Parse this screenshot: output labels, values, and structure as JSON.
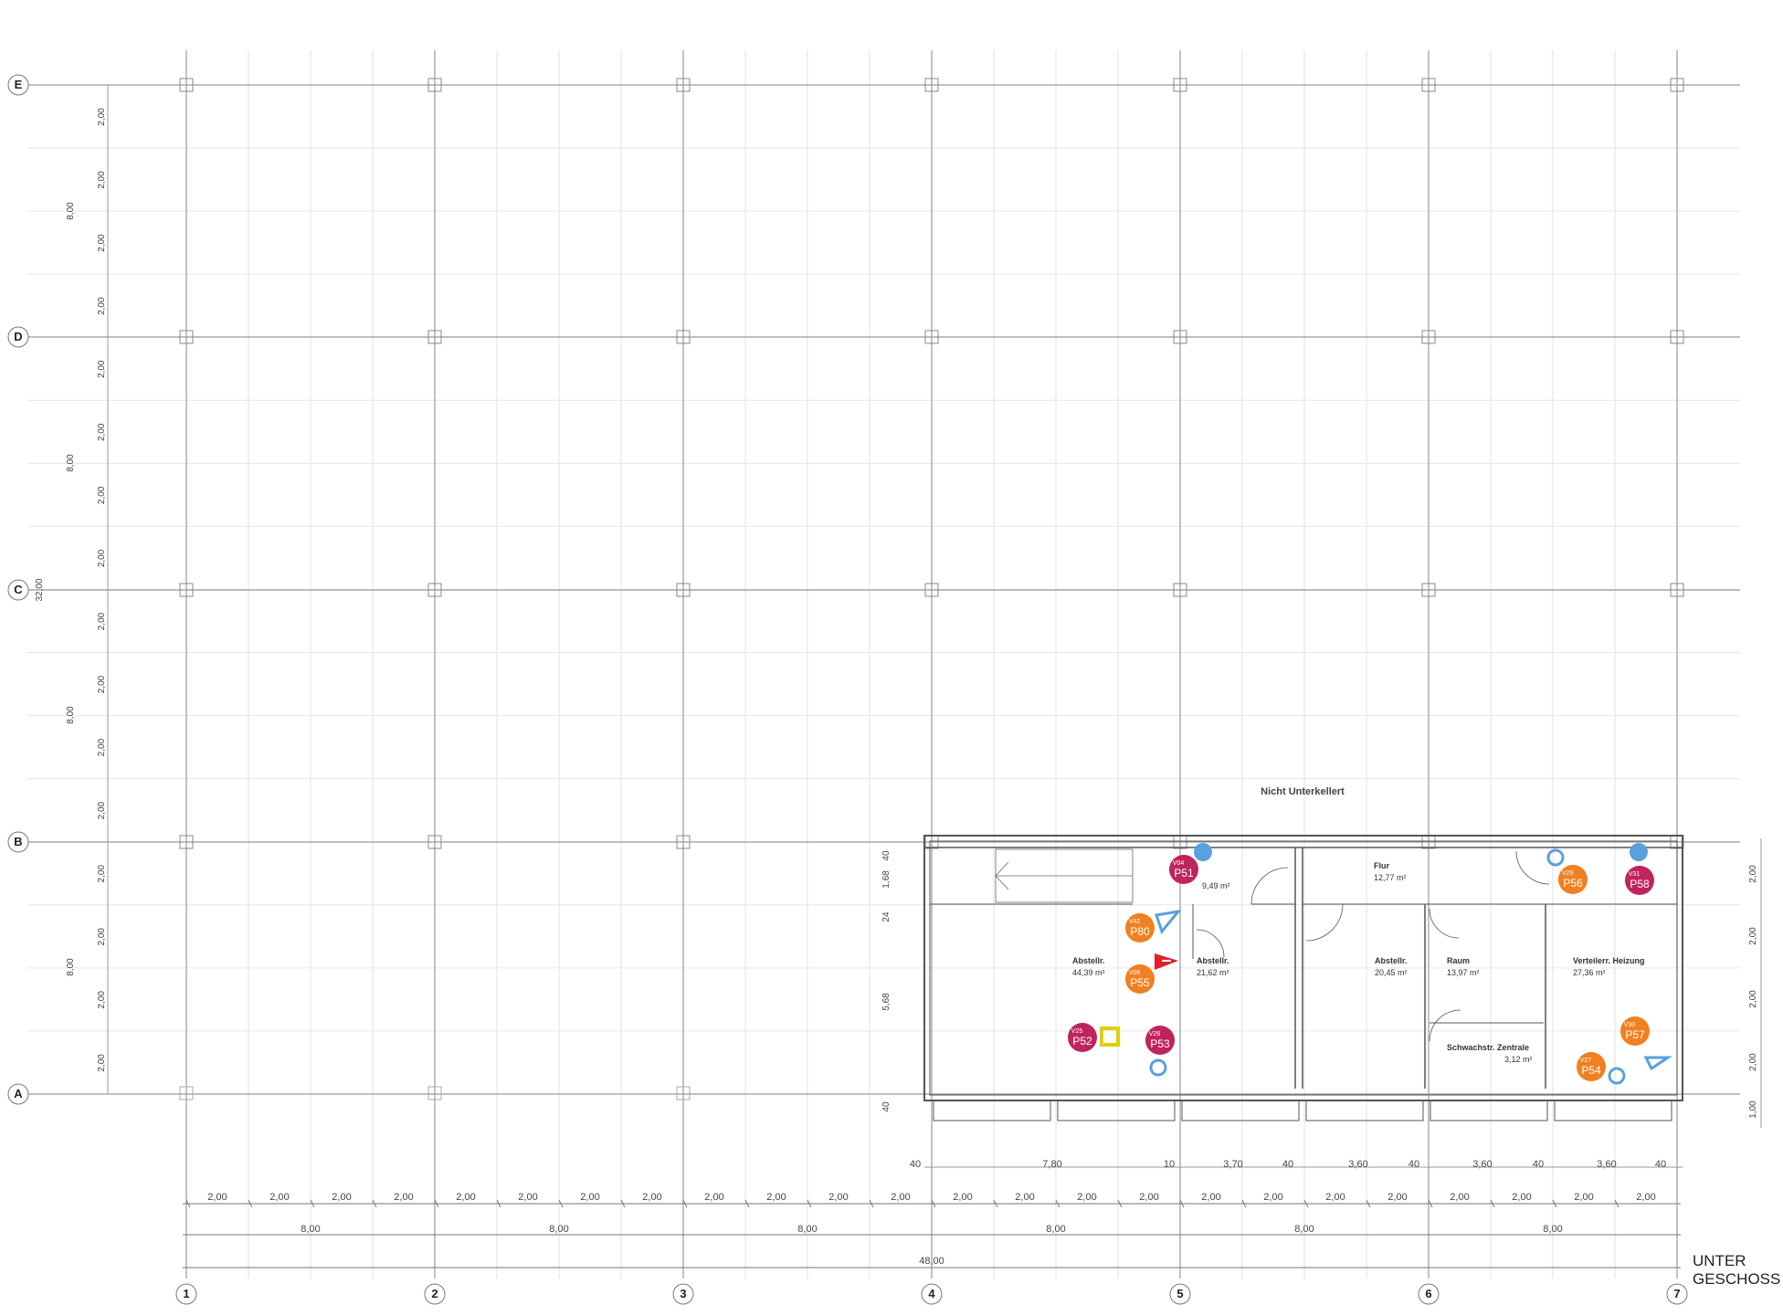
{
  "grid": {
    "columns": [
      "1",
      "2",
      "3",
      "4",
      "5",
      "6",
      "7"
    ],
    "rows": [
      "E",
      "D",
      "C",
      "B",
      "A"
    ]
  },
  "dims": {
    "sub": [
      "2,00",
      "2,00",
      "2,00",
      "2,00",
      "2,00",
      "2,00",
      "2,00",
      "2,00",
      "2,00",
      "2,00",
      "2,00",
      "2,00",
      "2,00",
      "2,00",
      "2,00",
      "2,00",
      "2,00",
      "2,00",
      "2,00",
      "2,00",
      "2,00",
      "2,00",
      "2,00",
      "2,00"
    ],
    "bays": [
      "8,00",
      "8,00",
      "8,00",
      "8,00",
      "8,00",
      "8,00"
    ],
    "total": "48,00",
    "left_sub": [
      "2,00",
      "2,00",
      "2,00",
      "2,00",
      "2,00",
      "2,00",
      "2,00",
      "2,00",
      "2,00",
      "2,00",
      "2,00",
      "2,00",
      "2,00",
      "2,00",
      "2,00",
      "2,00"
    ],
    "left_bays": [
      "8,00",
      "8,00",
      "8,00",
      "8,00"
    ],
    "left_total": "32,00",
    "walls": [
      "40",
      "7,80",
      "10",
      "3,70",
      "40",
      "3,60",
      "40",
      "3,60",
      "40",
      "3,60",
      "40"
    ],
    "wall_v": [
      "40",
      "1,68",
      "24",
      "5,68",
      "40"
    ],
    "right_v": [
      "2,00",
      "2,00",
      "2,00",
      "2,00",
      "1,00"
    ]
  },
  "notes": {
    "not_cellared": "Nicht Unterkellert"
  },
  "rooms": [
    {
      "name": "Flur",
      "area": "12,77 m²"
    },
    {
      "name": "",
      "area": "9,49 m²"
    },
    {
      "name": "Abstellr.",
      "area": "44,39 m²"
    },
    {
      "name": "Abstellr.",
      "area": "21,62 m²"
    },
    {
      "name": "Abstellr.",
      "area": "20,45 m²"
    },
    {
      "name": "Raum",
      "area": "13,97 m²"
    },
    {
      "name": "Verteilerr. Heizung",
      "area": "27,36 m²"
    },
    {
      "name": "Schwachstr. Zentrale",
      "area": "3,12 m²"
    }
  ],
  "markers": [
    {
      "top": "V04",
      "main": "P51",
      "color": "#c0245c"
    },
    {
      "top": "V42",
      "main": "P80",
      "color": "#f08020"
    },
    {
      "top": "V06",
      "main": "P55",
      "color": "#f08020"
    },
    {
      "top": "V25",
      "main": "P52",
      "color": "#c0245c"
    },
    {
      "top": "V26",
      "main": "P53",
      "color": "#c0245c"
    },
    {
      "top": "V29",
      "main": "P56",
      "color": "#f08020"
    },
    {
      "top": "V31",
      "main": "P58",
      "color": "#c0245c"
    },
    {
      "top": "V30",
      "main": "P57",
      "color": "#f08020"
    },
    {
      "top": "V27",
      "main": "P54",
      "color": "#f08020"
    }
  ],
  "title": {
    "line1": "UNTER",
    "line2": "GESCHOSS"
  },
  "colors": {
    "blue": "#5aa0dc",
    "red": "#e0202a",
    "yellow": "#e0d000",
    "magenta": "#c0245c",
    "orange": "#f08020"
  }
}
